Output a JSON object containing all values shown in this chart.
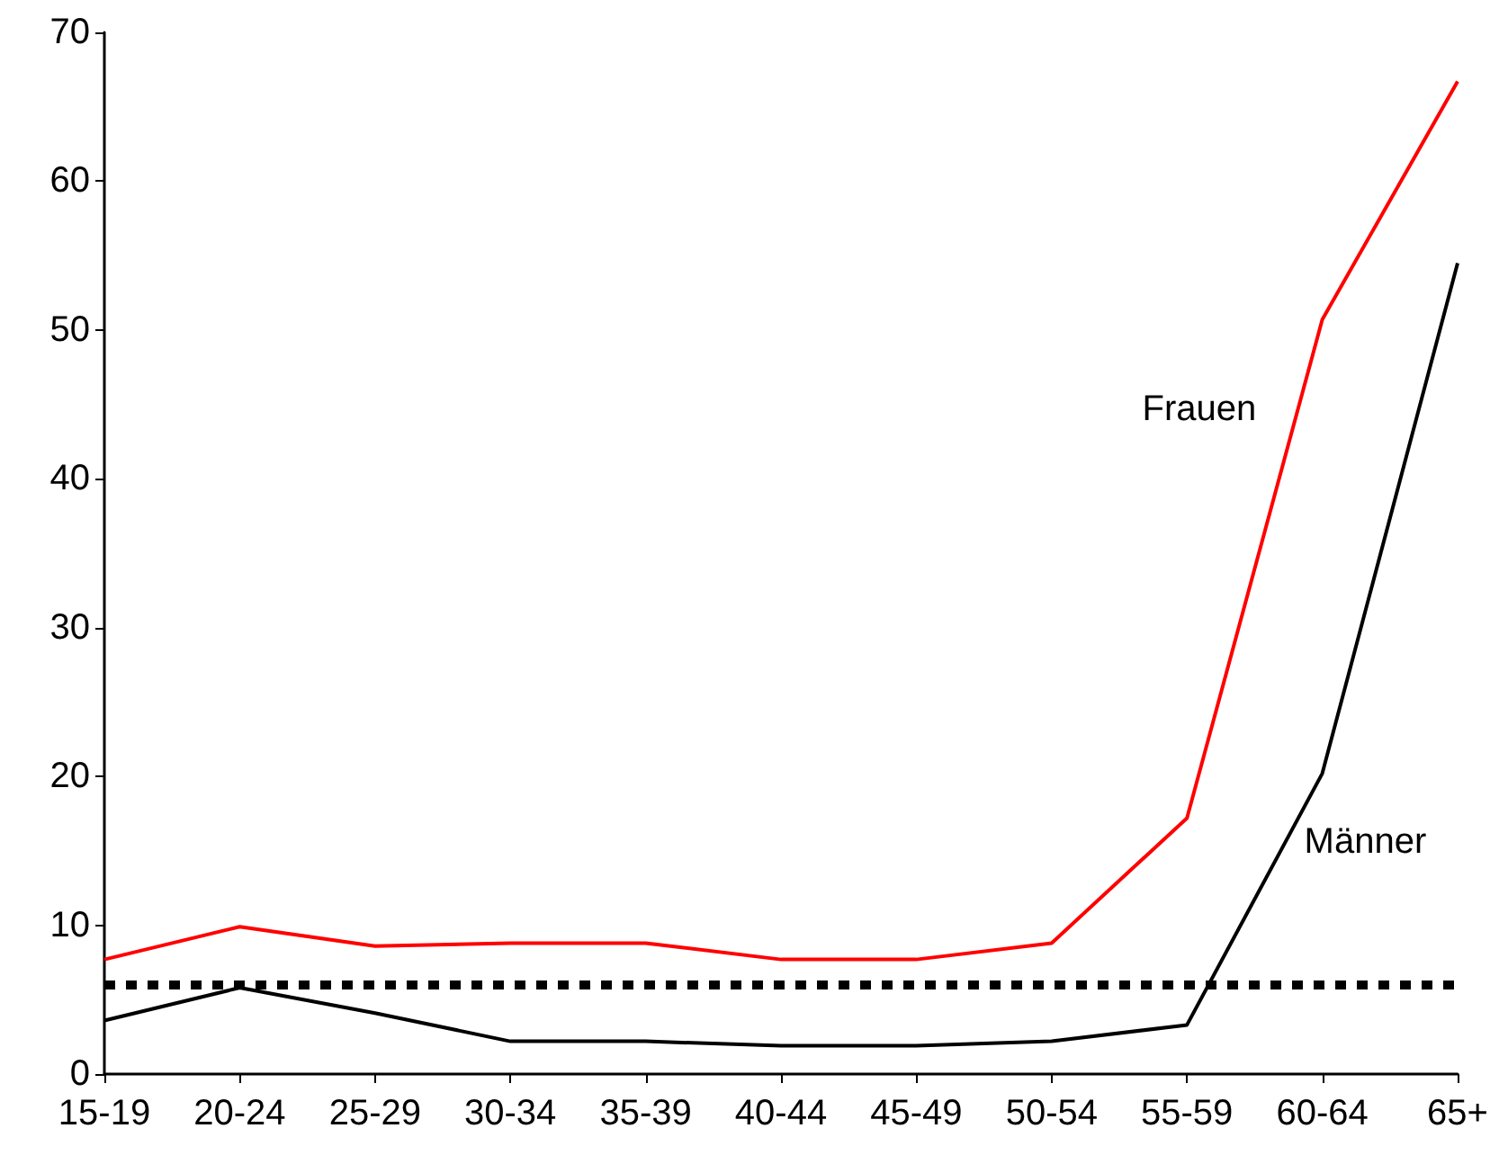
{
  "chart_data": {
    "type": "line",
    "categories": [
      "15-19",
      "20-24",
      "25-29",
      "30-34",
      "35-39",
      "40-44",
      "45-49",
      "50-54",
      "55-59",
      "60-64",
      "65+"
    ],
    "series": [
      {
        "name": "Frauen",
        "color": "#ff0000",
        "values": [
          7.7,
          9.9,
          8.6,
          8.8,
          8.8,
          7.7,
          7.7,
          8.8,
          17.2,
          50.7,
          66.7
        ]
      },
      {
        "name": "Männer",
        "color": "#000000",
        "values": [
          3.6,
          5.8,
          4.1,
          2.2,
          2.2,
          1.9,
          1.9,
          2.2,
          3.3,
          20.2,
          54.5
        ]
      }
    ],
    "ylim": [
      0,
      70
    ],
    "yticks": [
      0,
      10,
      20,
      30,
      40,
      50,
      60,
      70
    ],
    "grid": false,
    "legend": false,
    "marker": "none",
    "line_style": "solid",
    "ref_lines": [
      {
        "axis": "y",
        "value": 6,
        "color": "#000000",
        "line_style": "dotted"
      }
    ]
  }
}
